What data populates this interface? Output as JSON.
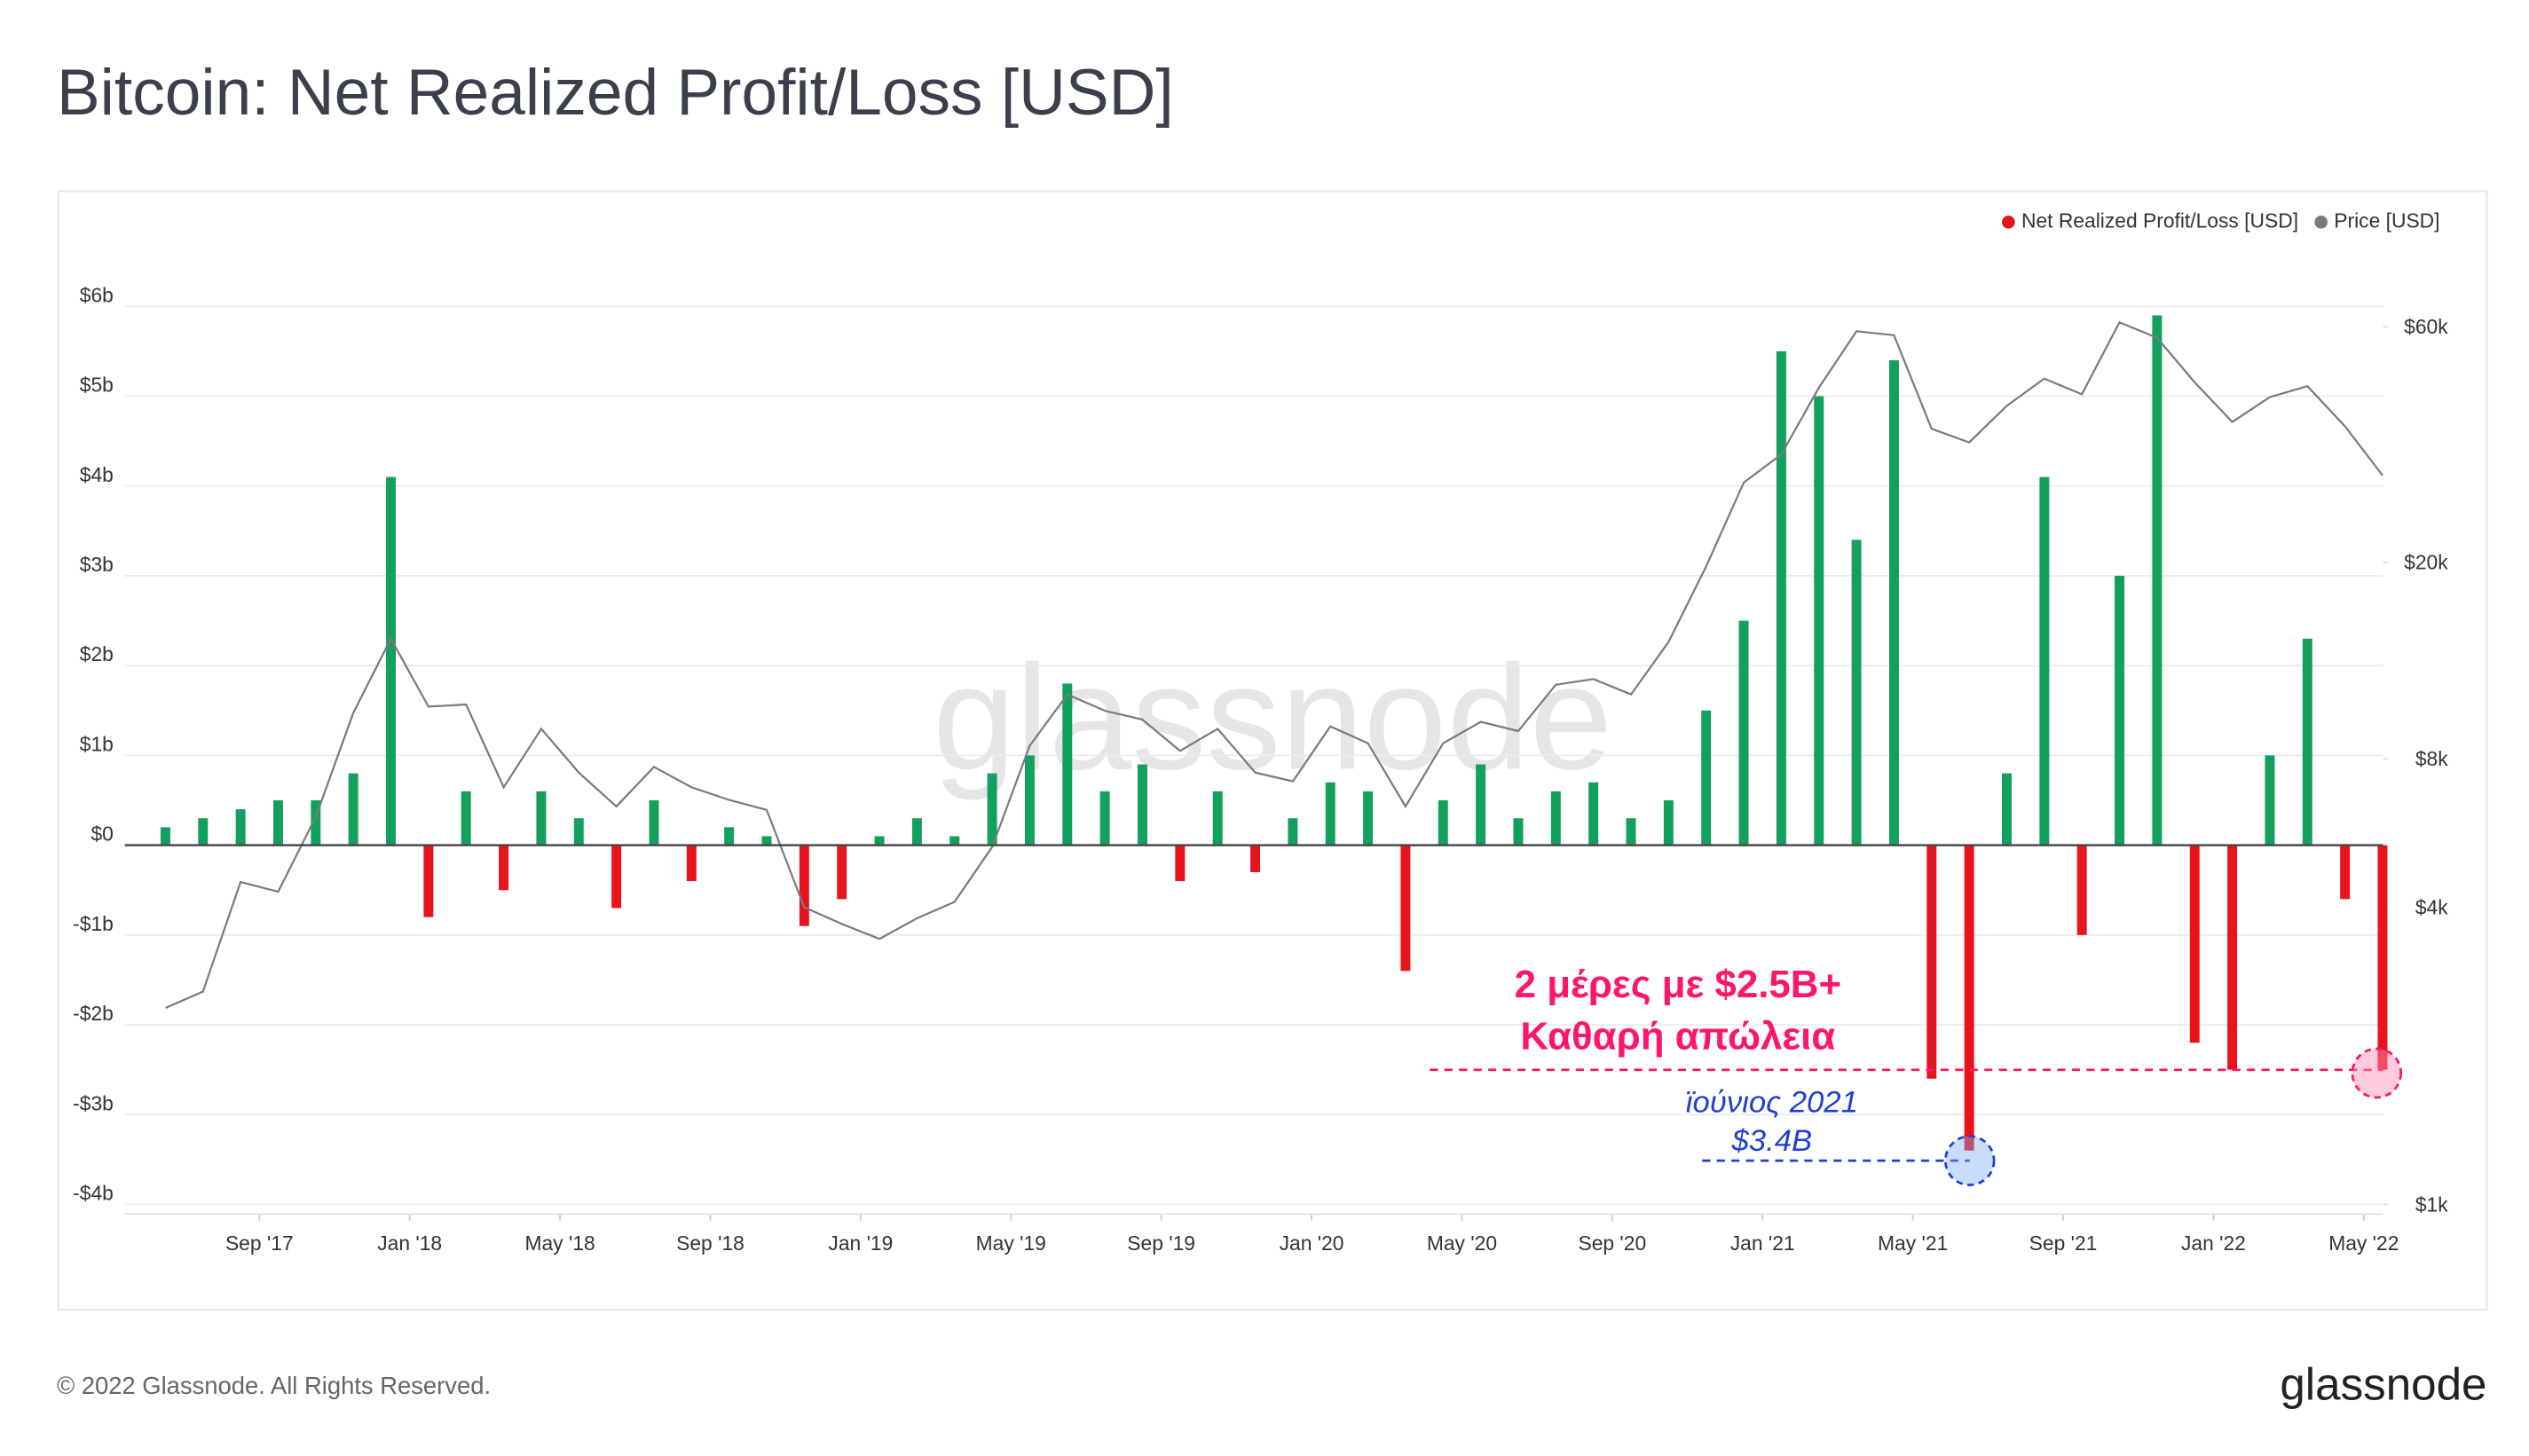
{
  "chart_data": {
    "type": "bar",
    "title": "Bitcoin: Net Realized Profit/Loss [USD]",
    "watermark": "glassnode",
    "footer": "© 2022 Glassnode. All Rights Reserved.",
    "logo": "glassnode",
    "categories": [
      null,
      null,
      null,
      "Sep '17",
      null,
      null,
      null,
      "Jan '18",
      null,
      null,
      null,
      "May '18",
      null,
      null,
      null,
      "Sep '18",
      null,
      null,
      null,
      "Jan '19",
      null,
      null,
      null,
      "May '19",
      null,
      null,
      null,
      "Sep '19",
      null,
      null,
      null,
      "Jan '20",
      null,
      null,
      null,
      "May '20",
      null,
      null,
      null,
      "Sep '20",
      null,
      null,
      null,
      "Jan '21",
      null,
      null,
      null,
      "May '21",
      null,
      null,
      null,
      "Sep '21",
      null,
      null,
      null,
      "Jan '22",
      null,
      null,
      null,
      "May '22"
    ],
    "series": [
      {
        "name": "Net Realized Profit/Loss [USD]",
        "color": "#e8141c",
        "positive_color": "#12a05c",
        "values": [
          0.2,
          0.3,
          0.4,
          0.5,
          0.5,
          0.8,
          4.1,
          -0.8,
          0.6,
          -0.5,
          0.6,
          0.3,
          -0.7,
          0.5,
          -0.4,
          0.2,
          0.1,
          -0.9,
          -0.6,
          0.1,
          0.3,
          0.1,
          0.8,
          1.0,
          1.8,
          0.6,
          0.9,
          -0.4,
          0.6,
          -0.3,
          0.3,
          0.7,
          0.6,
          -1.4,
          0.5,
          0.9,
          0.3,
          0.6,
          0.7,
          0.3,
          0.5,
          1.5,
          2.5,
          5.5,
          5.0,
          3.4,
          5.4,
          -2.6,
          -3.4,
          0.8,
          4.1,
          -1.0,
          3.0,
          5.9,
          -2.2,
          -2.5,
          1.0,
          2.3,
          -0.6,
          -2.5
        ]
      },
      {
        "name": "Price [USD]",
        "color": "#7a7a7a",
        "axis": "y2",
        "values": [
          2500,
          2700,
          4500,
          4300,
          6100,
          9900,
          14000,
          10200,
          10300,
          7000,
          9200,
          7500,
          6400,
          7700,
          7000,
          6600,
          6300,
          4000,
          3700,
          3450,
          3800,
          4100,
          5300,
          8500,
          10800,
          10000,
          9600,
          8300,
          9200,
          7500,
          7200,
          9300,
          8600,
          6400,
          8600,
          9500,
          9100,
          11300,
          11600,
          10800,
          13800,
          19600,
          29000,
          33100,
          45200,
          58800,
          57700,
          37300,
          35000,
          41500,
          47100,
          43800,
          61300,
          57000,
          46300,
          38500,
          43200,
          45500,
          37700,
          30000
        ]
      }
    ],
    "ylim": [
      -4,
      6
    ],
    "yticks": [
      {
        "value": -4,
        "label": "-$4b"
      },
      {
        "value": -3,
        "label": "-$3b"
      },
      {
        "value": -2,
        "label": "-$2b"
      },
      {
        "value": -1,
        "label": "-$1b"
      },
      {
        "value": 0,
        "label": "$0"
      },
      {
        "value": 1,
        "label": "$1b"
      },
      {
        "value": 2,
        "label": "$2b"
      },
      {
        "value": 3,
        "label": "$3b"
      },
      {
        "value": 4,
        "label": "$4b"
      },
      {
        "value": 5,
        "label": "$5b"
      },
      {
        "value": 6,
        "label": "$6b"
      }
    ],
    "y2lim": [
      1000,
      66000
    ],
    "y2_log_scale": true,
    "y2ticks": [
      {
        "value": 1000,
        "label": "$1k"
      },
      {
        "value": 4000,
        "label": "$4k"
      },
      {
        "value": 8000,
        "label": "$8k"
      },
      {
        "value": 20000,
        "label": "$20k"
      },
      {
        "value": 60000,
        "label": "$60k"
      }
    ],
    "grid": true,
    "legend_position": "top-right",
    "annotations": [
      "2 μέρες με $2.5B+",
      "Καθαρή απώλεια",
      "ϊούνιος 2021",
      "$3.4B"
    ]
  }
}
